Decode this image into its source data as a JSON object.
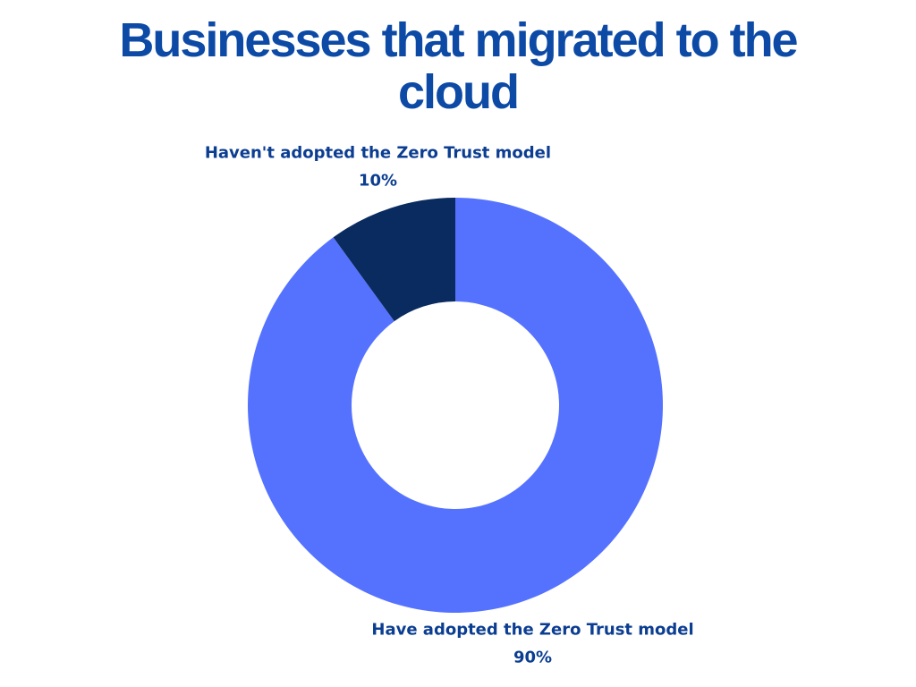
{
  "chart_data": {
    "type": "donut",
    "title": "Businesses that migrated to the cloud",
    "categories": [
      "Have adopted the Zero Trust model",
      "Haven't adopted the Zero Trust model"
    ],
    "values": [
      90,
      10
    ],
    "value_labels": [
      "90%",
      "10%"
    ],
    "colors": [
      "#5572ff",
      "#0a2b5f"
    ]
  }
}
